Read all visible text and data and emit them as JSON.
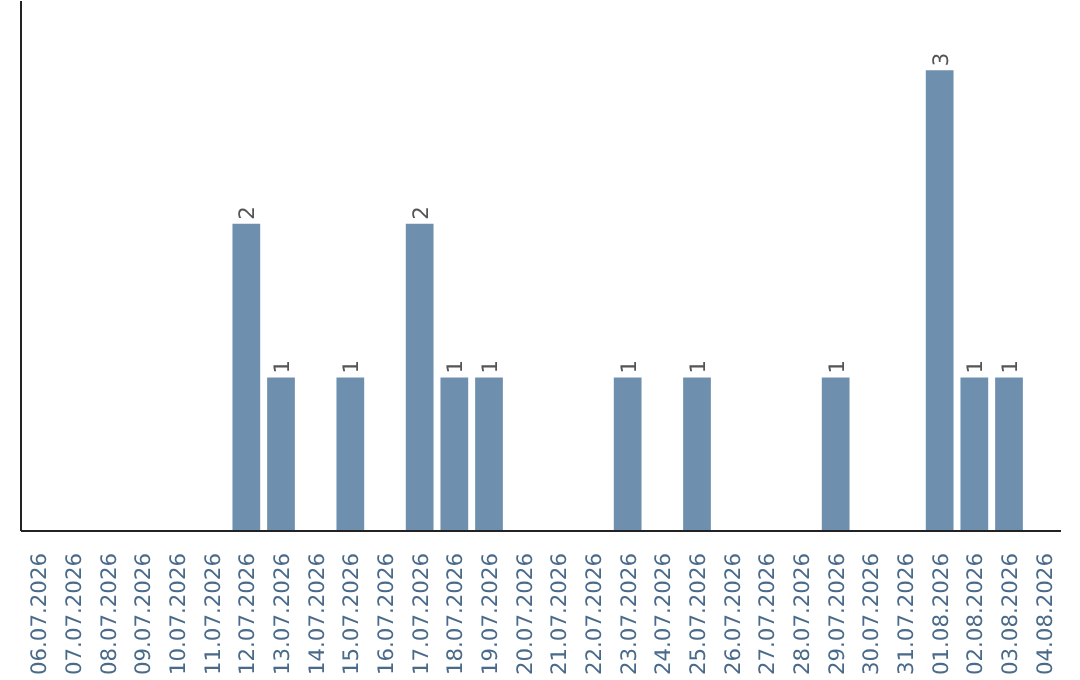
{
  "chart_data": {
    "type": "bar",
    "categories": [
      "06.07.2026",
      "07.07.2026",
      "08.07.2026",
      "09.07.2026",
      "10.07.2026",
      "11.07.2026",
      "12.07.2026",
      "13.07.2026",
      "14.07.2026",
      "15.07.2026",
      "16.07.2026",
      "17.07.2026",
      "18.07.2026",
      "19.07.2026",
      "20.07.2026",
      "21.07.2026",
      "22.07.2026",
      "23.07.2026",
      "24.07.2026",
      "25.07.2026",
      "26.07.2026",
      "27.07.2026",
      "28.07.2026",
      "29.07.2026",
      "30.07.2026",
      "31.07.2026",
      "01.08.2026",
      "02.08.2026",
      "03.08.2026",
      "04.08.2026"
    ],
    "values": [
      0,
      0,
      0,
      0,
      0,
      0,
      2,
      1,
      0,
      1,
      0,
      2,
      1,
      1,
      0,
      0,
      0,
      1,
      0,
      1,
      0,
      0,
      0,
      1,
      0,
      0,
      3,
      1,
      1,
      0
    ],
    "value_labels": [
      null,
      null,
      null,
      null,
      null,
      null,
      "2",
      "1",
      null,
      "1",
      null,
      "2",
      "1",
      "1",
      null,
      null,
      null,
      "1",
      null,
      "1",
      null,
      null,
      null,
      "1",
      null,
      null,
      "3",
      "1",
      "1",
      null
    ],
    "color": "#6f8fae",
    "grid": false,
    "tick_labels": "x"
  }
}
